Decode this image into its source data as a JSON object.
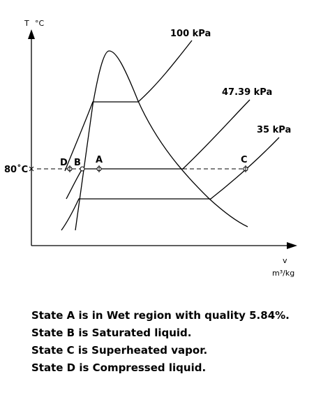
{
  "axes": {
    "y_label": "T",
    "y_unit": "°C",
    "x_label": "v",
    "x_unit": "m³/kg"
  },
  "pressures": {
    "high": "100 kPa",
    "mid": "47.39 kPa",
    "low": "35 kPa"
  },
  "temperature_marker": "80˚C",
  "states": {
    "D": "D",
    "B": "B",
    "A": "A",
    "C": "C"
  },
  "notes": [
    "State A is in Wet region with quality 5.84%.",
    "State B is Saturated liquid.",
    "State C is Superheated vapor.",
    "State D is Compressed liquid."
  ]
}
